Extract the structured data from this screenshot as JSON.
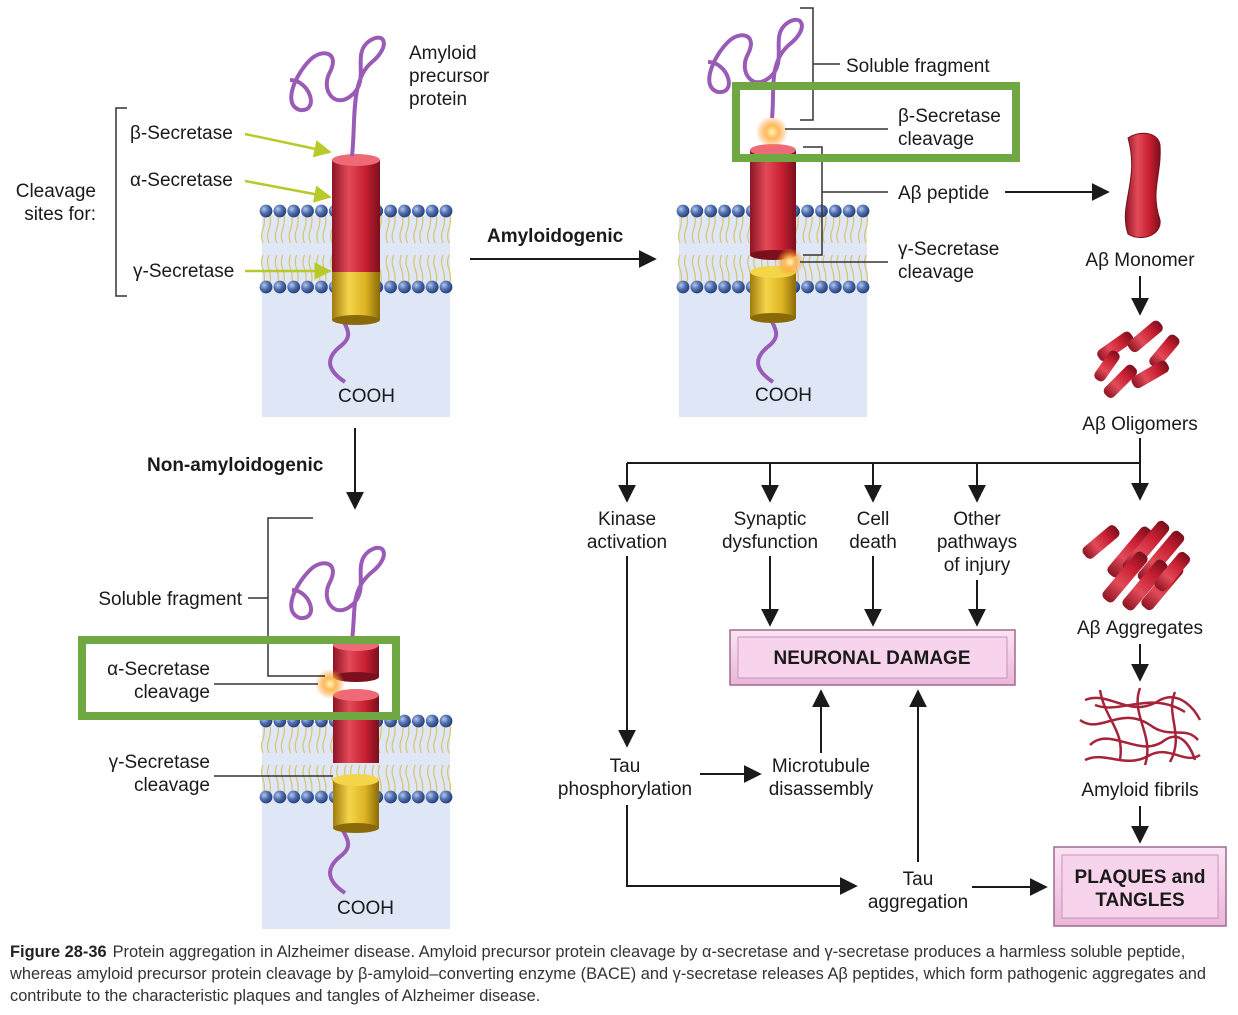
{
  "colors": {
    "highlight_box": "#6fa843",
    "membrane_panel": "#dfe6f5",
    "lipid_head": "#4f6fb0",
    "helix_red": "#d42a3b",
    "helix_gold": "#e3b923",
    "tail_purple": "#9a5bb6",
    "box_fill": "#f3c8e6"
  },
  "panels": {
    "app": {
      "protein_name": [
        "Amyloid",
        "precursor",
        "protein"
      ],
      "cleavage_sites_label": [
        "Cleavage",
        "sites for:"
      ],
      "beta_secretase": "β-Secretase",
      "alpha_secretase": "α-Secretase",
      "gamma_secretase": "γ-Secretase",
      "cooh": "COOH"
    },
    "amyloidogenic": {
      "soluble_fragment": "Soluble fragment",
      "beta_cleavage": [
        "β-Secretase",
        "cleavage"
      ],
      "abeta_peptide": "Aβ peptide",
      "gamma_cleavage": [
        "γ-Secretase",
        "cleavage"
      ],
      "cooh": "COOH"
    },
    "non_amyloidogenic": {
      "soluble_fragment": "Soluble fragment",
      "alpha_cleavage": [
        "α-Secretase",
        "cleavage"
      ],
      "gamma_cleavage": [
        "γ-Secretase",
        "cleavage"
      ],
      "cooh": "COOH"
    }
  },
  "pathways": {
    "amyloidogenic": "Amyloidogenic",
    "non_amyloidogenic": "Non-amyloidogenic"
  },
  "aggregation": {
    "monomer": "Aβ Monomer",
    "oligomers": "Aβ Oligomers",
    "aggregates": "Aβ Aggregates",
    "fibrils": "Amyloid fibrils",
    "plaques": [
      "PLAQUES and",
      "TANGLES"
    ]
  },
  "effects": {
    "kinase": [
      "Kinase",
      "activation"
    ],
    "synaptic": [
      "Synaptic",
      "dysfunction"
    ],
    "cell_death": [
      "Cell",
      "death"
    ],
    "other": [
      "Other",
      "pathways",
      "of injury"
    ],
    "neuronal_damage": "NEURONAL DAMAGE",
    "tau_phos": [
      "Tau",
      "phosphorylation"
    ],
    "microtubule": [
      "Microtubule",
      "disassembly"
    ],
    "tau_agg": [
      "Tau",
      "aggregation"
    ]
  },
  "caption": {
    "figure": "Figure 28-36",
    "text": "Protein aggregation in Alzheimer disease. Amyloid precursor protein cleavage by α-secretase and γ-secretase produces a harmless soluble peptide, whereas amyloid precursor protein cleavage by β-amyloid–converting enzyme (BACE) and γ-secretase releases Aβ peptides, which form pathogenic aggregates and contribute to the characteristic plaques and tangles of Alzheimer disease."
  }
}
